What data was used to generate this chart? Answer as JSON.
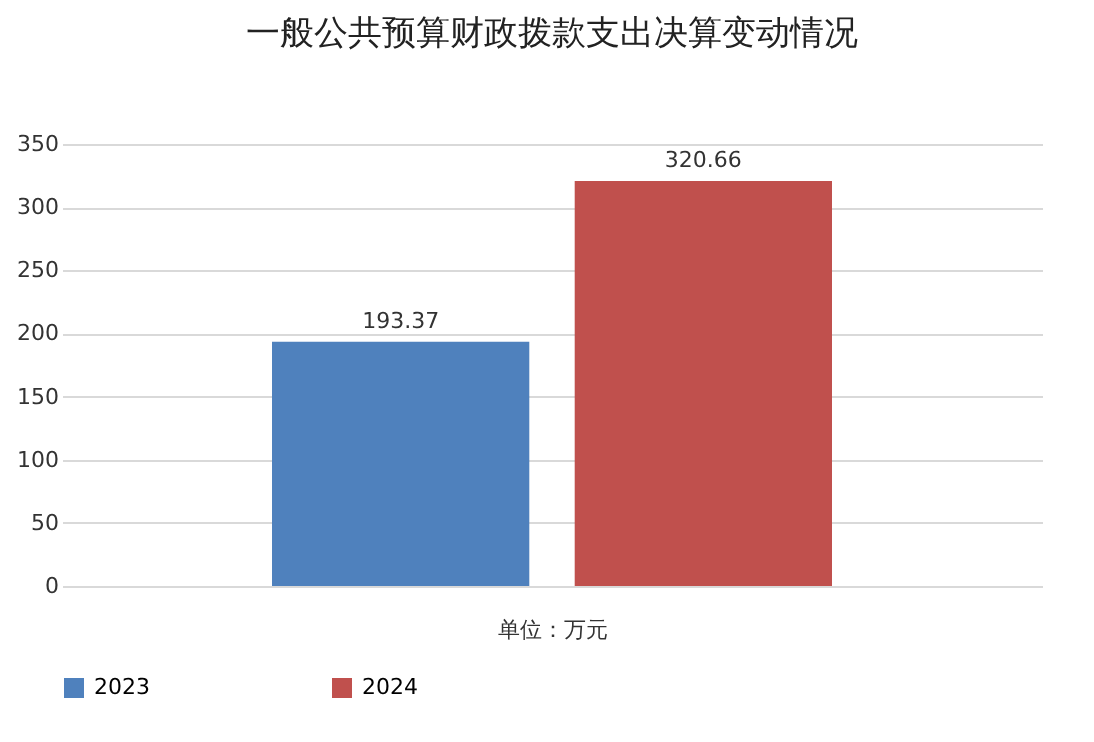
{
  "chart_data": {
    "type": "bar",
    "title": "一般公共预算财政拨款支出决算变动情况",
    "xlabel": "单位：万元",
    "categories": [
      null
    ],
    "series": [
      {
        "name": "2023",
        "color": "#4f81bd",
        "values": [
          193.37
        ]
      },
      {
        "name": "2024",
        "color": "#c0504d",
        "values": [
          320.66
        ]
      }
    ],
    "ylim": [
      0,
      350
    ],
    "yticks": [
      0,
      50,
      100,
      150,
      200,
      250,
      300,
      350
    ],
    "grid": "y",
    "legend": "bottom",
    "data_labels": true
  }
}
